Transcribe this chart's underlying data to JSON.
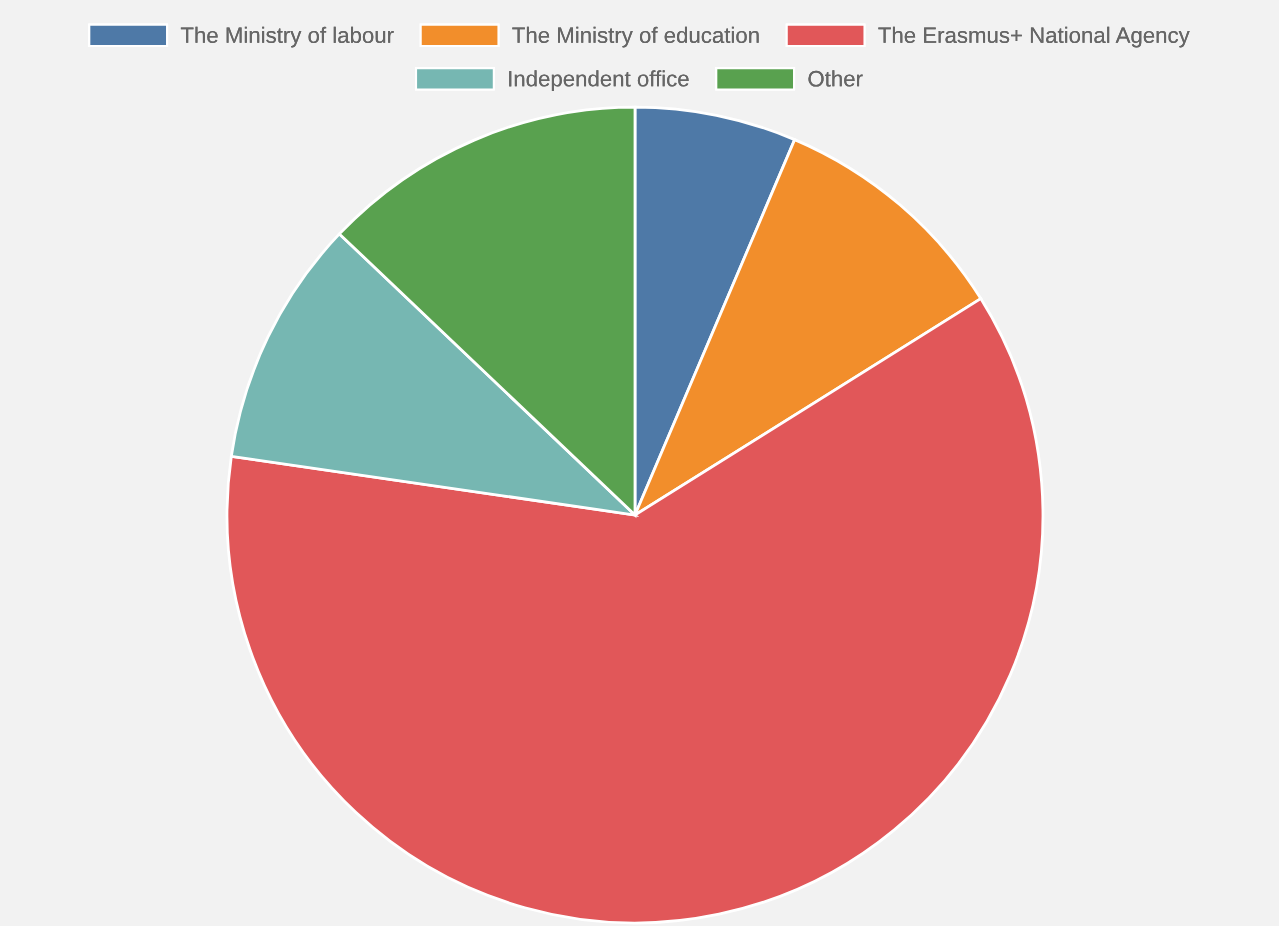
{
  "chart_data": {
    "type": "pie",
    "categories": [
      "The Ministry of labour",
      "The Ministry of education",
      "The Erasmus+ National Agency",
      "Independent office",
      "Other"
    ],
    "values": [
      6.4,
      9.7,
      61.2,
      9.8,
      12.9
    ],
    "colors": [
      "#4e79a7",
      "#f28e2b",
      "#e15759",
      "#76b7b2",
      "#59a14f"
    ],
    "legend": "top"
  }
}
